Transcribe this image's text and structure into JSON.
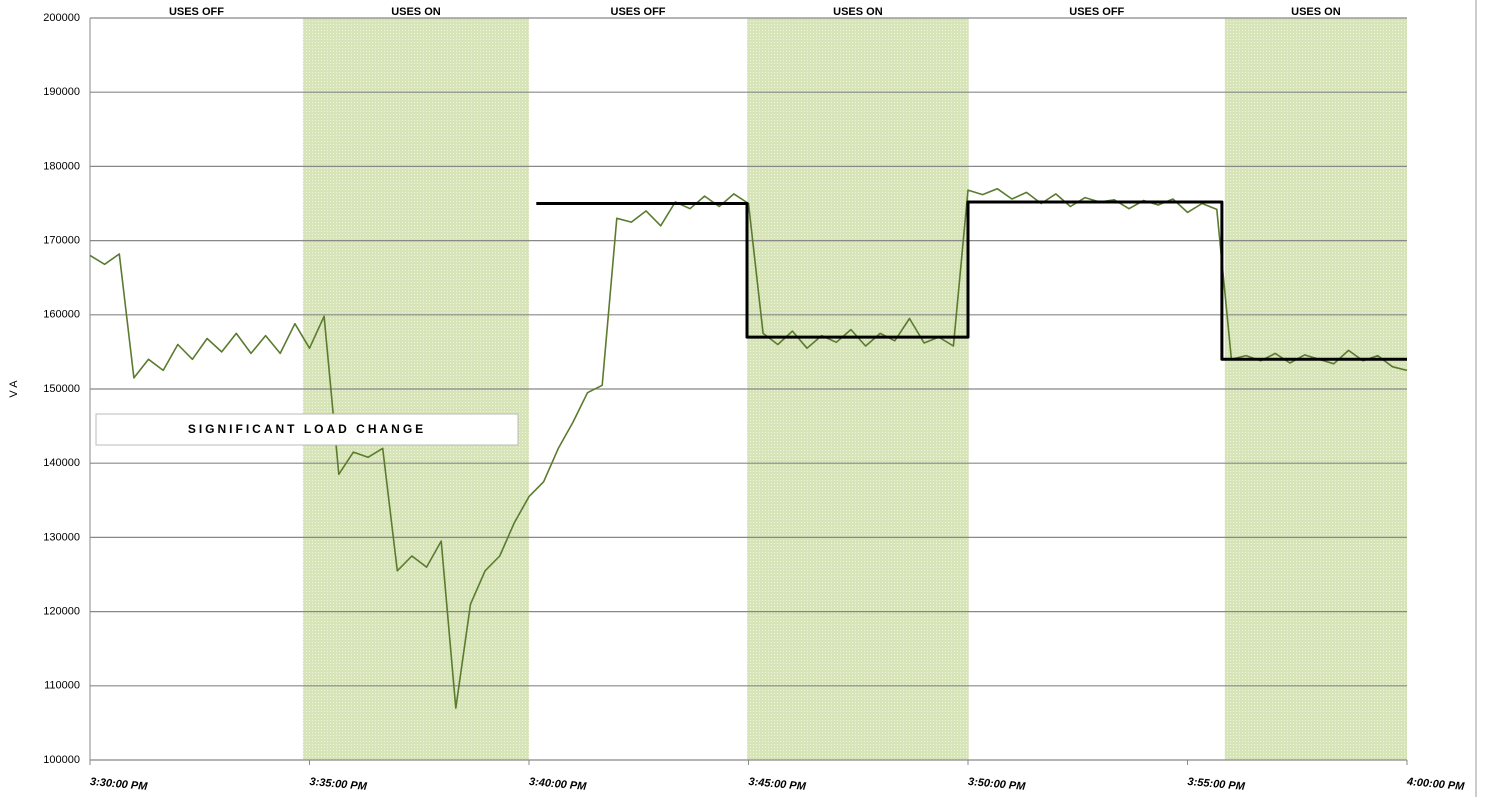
{
  "chart_data": {
    "type": "line",
    "y_label": "V A",
    "annotation": "SIGNIFICANT LOAD CHANGE",
    "ylim": [
      100000,
      200000
    ],
    "yticks": [
      100000,
      110000,
      120000,
      130000,
      140000,
      150000,
      160000,
      170000,
      180000,
      190000,
      200000
    ],
    "xlim": [
      "3:30:00 PM",
      "4:00:00 PM"
    ],
    "xticks": [
      "3:30:00 PM",
      "3:35:00 PM",
      "3:40:00 PM",
      "3:45:00 PM",
      "3:50:00 PM",
      "3:55:00 PM",
      "4:00:00 PM"
    ],
    "grid": true,
    "band_color": "#d6e4b8",
    "phases": [
      {
        "label": "USES OFF",
        "start": "3:30:00 PM",
        "end": "3:34:51 PM",
        "shaded": false
      },
      {
        "label": "USES ON",
        "start": "3:34:51 PM",
        "end": "3:40:00 PM",
        "shaded": true
      },
      {
        "label": "USES OFF",
        "start": "3:40:00 PM",
        "end": "3:44:58 PM",
        "shaded": false
      },
      {
        "label": "USES ON",
        "start": "3:44:58 PM",
        "end": "3:50:01 PM",
        "shaded": true
      },
      {
        "label": "USES OFF",
        "start": "3:50:01 PM",
        "end": "3:55:51 PM",
        "shaded": false
      },
      {
        "label": "USES ON",
        "start": "3:55:51 PM",
        "end": "4:00:00 PM",
        "shaded": true
      }
    ],
    "x": [
      "3:30:00 PM",
      "3:30:20 PM",
      "3:30:40 PM",
      "3:31:00 PM",
      "3:31:20 PM",
      "3:31:40 PM",
      "3:32:00 PM",
      "3:32:20 PM",
      "3:32:40 PM",
      "3:33:00 PM",
      "3:33:20 PM",
      "3:33:40 PM",
      "3:34:00 PM",
      "3:34:20 PM",
      "3:34:40 PM",
      "3:35:00 PM",
      "3:35:20 PM",
      "3:35:40 PM",
      "3:36:00 PM",
      "3:36:20 PM",
      "3:36:40 PM",
      "3:37:00 PM",
      "3:37:20 PM",
      "3:37:40 PM",
      "3:38:00 PM",
      "3:38:20 PM",
      "3:38:40 PM",
      "3:39:00 PM",
      "3:39:20 PM",
      "3:39:40 PM",
      "3:40:00 PM",
      "3:40:20 PM",
      "3:40:40 PM",
      "3:41:00 PM",
      "3:41:20 PM",
      "3:41:40 PM",
      "3:42:00 PM",
      "3:42:20 PM",
      "3:42:40 PM",
      "3:43:00 PM",
      "3:43:20 PM",
      "3:43:40 PM",
      "3:44:00 PM",
      "3:44:20 PM",
      "3:44:40 PM",
      "3:45:00 PM",
      "3:45:20 PM",
      "3:45:40 PM",
      "3:46:00 PM",
      "3:46:20 PM",
      "3:46:40 PM",
      "3:47:00 PM",
      "3:47:20 PM",
      "3:47:40 PM",
      "3:48:00 PM",
      "3:48:20 PM",
      "3:48:40 PM",
      "3:49:00 PM",
      "3:49:20 PM",
      "3:49:40 PM",
      "3:50:00 PM",
      "3:50:20 PM",
      "3:50:40 PM",
      "3:51:00 PM",
      "3:51:20 PM",
      "3:51:40 PM",
      "3:52:00 PM",
      "3:52:20 PM",
      "3:52:40 PM",
      "3:53:00 PM",
      "3:53:20 PM",
      "3:53:40 PM",
      "3:54:00 PM",
      "3:54:20 PM",
      "3:54:40 PM",
      "3:55:00 PM",
      "3:55:20 PM",
      "3:55:40 PM",
      "3:56:00 PM",
      "3:56:20 PM",
      "3:56:40 PM",
      "3:57:00 PM",
      "3:57:20 PM",
      "3:57:40 PM",
      "3:58:00 PM",
      "3:58:20 PM",
      "3:58:40 PM",
      "3:59:00 PM",
      "3:59:20 PM",
      "3:59:40 PM",
      "4:00:00 PM"
    ],
    "series": [
      {
        "color": "#5b7b2f",
        "values": [
          168000,
          166800,
          168200,
          151500,
          154000,
          152500,
          156000,
          154000,
          156800,
          155000,
          157500,
          154800,
          157200,
          154800,
          158800,
          155500,
          159800,
          138500,
          141500,
          140800,
          142000,
          125500,
          127500,
          126000,
          129500,
          107000,
          121000,
          125500,
          127500,
          132000,
          135500,
          137500,
          142000,
          145500,
          149500,
          150500,
          173000,
          172500,
          174000,
          172000,
          175200,
          174300,
          176000,
          174600,
          176300,
          175000,
          157500,
          156000,
          157800,
          155500,
          157200,
          156300,
          158000,
          155800,
          157500,
          156500,
          159500,
          156200,
          157000,
          155800,
          176800,
          176200,
          177000,
          175600,
          176500,
          175000,
          176300,
          174600,
          175800,
          175200,
          175500,
          174300,
          175400,
          174800,
          175600,
          173800,
          175000,
          174200,
          154000,
          154500,
          153800,
          154800,
          153500,
          154600,
          154000,
          153400,
          155200,
          153800,
          154500,
          153000,
          152500
        ]
      },
      {
        "color": "#000000",
        "x": [
          "3:40:10 PM",
          "3:44:58 PM",
          "3:44:58 PM",
          "3:50:00 PM",
          "3:50:00 PM",
          "3:55:47 PM",
          "3:55:47 PM",
          "4:00:00 PM"
        ],
        "values": [
          175000,
          175000,
          157000,
          157000,
          175200,
          175200,
          154000,
          154000
        ]
      }
    ]
  }
}
